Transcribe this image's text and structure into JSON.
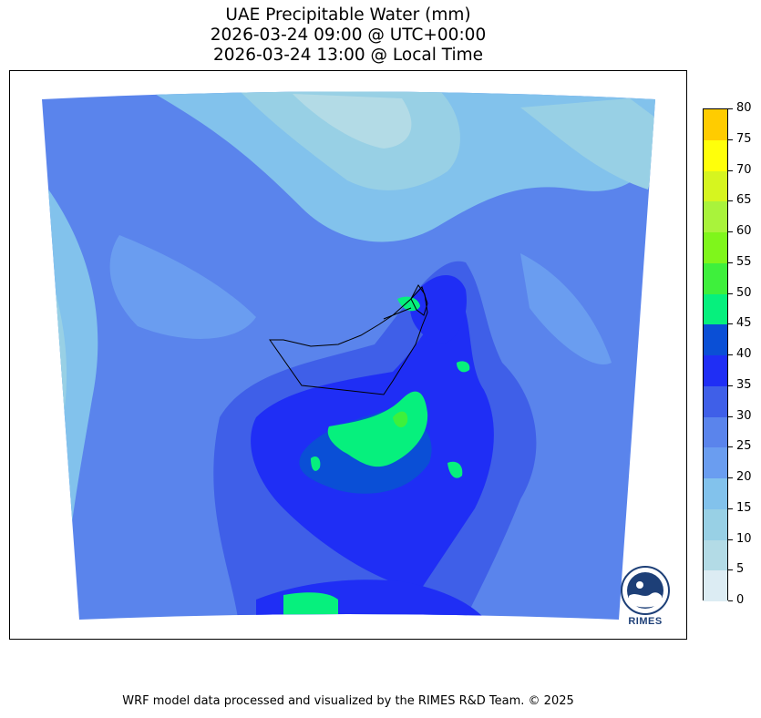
{
  "title": {
    "line1": "UAE Precipitable Water (mm)",
    "line2": "2026-03-24 09:00 @ UTC+00:00",
    "line3": "2026-03-24 13:00 @ Local Time"
  },
  "footer": "WRF model data processed and visualized by the RIMES R&D Team. © 2025",
  "logo": {
    "text": "RIMES",
    "icon": "rimes-logo-icon",
    "color": "#1d3f77"
  },
  "colorbar": {
    "unit": "mm",
    "levels": [
      {
        "from": 0,
        "to": 5,
        "color": "#dcecf3"
      },
      {
        "from": 5,
        "to": 10,
        "color": "#b3dbe6"
      },
      {
        "from": 10,
        "to": 15,
        "color": "#98d0e5"
      },
      {
        "from": 15,
        "to": 20,
        "color": "#82c2ec"
      },
      {
        "from": 20,
        "to": 25,
        "color": "#6a9df0"
      },
      {
        "from": 25,
        "to": 30,
        "color": "#5a84ec"
      },
      {
        "from": 30,
        "to": 35,
        "color": "#3f5fe8"
      },
      {
        "from": 35,
        "to": 40,
        "color": "#1f2ef5"
      },
      {
        "from": 40,
        "to": 45,
        "color": "#0a4fd6"
      },
      {
        "from": 45,
        "to": 50,
        "color": "#06f07d"
      },
      {
        "from": 50,
        "to": 55,
        "color": "#3ef03c"
      },
      {
        "from": 55,
        "to": 60,
        "color": "#7ff61b"
      },
      {
        "from": 60,
        "to": 65,
        "color": "#a9f33b"
      },
      {
        "from": 65,
        "to": 70,
        "color": "#d6f51f"
      },
      {
        "from": 70,
        "to": 75,
        "color": "#ffff0a"
      },
      {
        "from": 75,
        "to": 80,
        "color": "#ffcc00"
      }
    ],
    "tick_labels": [
      "0",
      "5",
      "10",
      "15",
      "20",
      "25",
      "30",
      "35",
      "40",
      "45",
      "50",
      "55",
      "60",
      "65",
      "70",
      "75",
      "80"
    ]
  },
  "map": {
    "region": "UAE",
    "variable": "Precipitable Water",
    "dominant_colors": [
      "#5a84ec",
      "#6a9df0",
      "#82c2ec",
      "#98d0e5",
      "#3f5fe8",
      "#1f2ef5",
      "#06f07d"
    ]
  }
}
